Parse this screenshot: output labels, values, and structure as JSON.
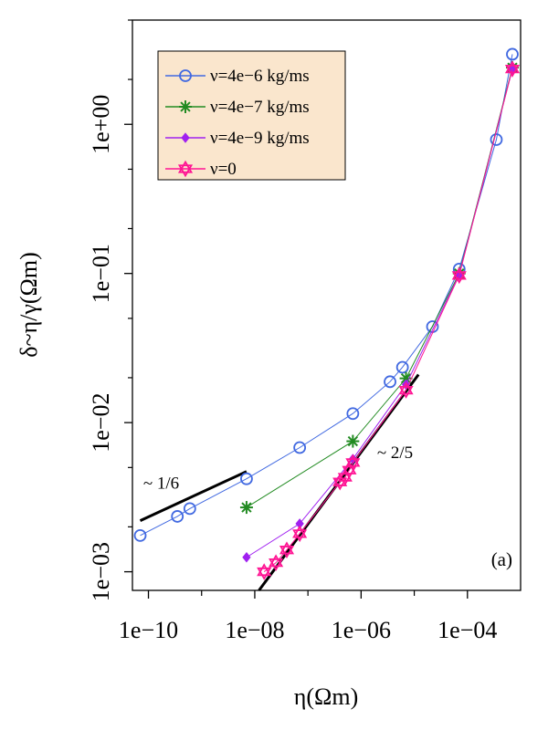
{
  "chart_data": {
    "type": "line",
    "xlabel": "η(Ωm)",
    "ylabel": "δ~η/γ(Ωm)",
    "xscale": "log",
    "yscale": "log",
    "xlim": [
      5e-11,
      0.001
    ],
    "ylim": [
      0.00075,
      5.0
    ],
    "x_tick_labels": [
      {
        "value": 1e-10,
        "label": "1e−10"
      },
      {
        "value": 1e-08,
        "label": "1e−08"
      },
      {
        "value": 1e-06,
        "label": "1e−06"
      },
      {
        "value": 0.0001,
        "label": "1e−04"
      }
    ],
    "y_tick_labels": [
      {
        "value": 0.001,
        "label": "1e−03"
      },
      {
        "value": 0.01,
        "label": "1e−02"
      },
      {
        "value": 0.1,
        "label": "1e−01"
      },
      {
        "value": 1.0,
        "label": "1e+00"
      }
    ],
    "legend": {
      "position": "top-left",
      "background": "#fae6cd"
    },
    "panel_label": "(a)",
    "series": [
      {
        "name": "ν=4e−6 kg/ms",
        "color": "#4169e1",
        "marker": "circle",
        "points": [
          [
            7e-11,
            0.00175
          ],
          [
            3.5e-10,
            0.00235
          ],
          [
            6e-10,
            0.00265
          ],
          [
            7e-09,
            0.0042
          ],
          [
            7e-08,
            0.0068
          ],
          [
            7e-07,
            0.0115
          ],
          [
            3.5e-06,
            0.0188
          ],
          [
            6e-06,
            0.0235
          ],
          [
            2.2e-05,
            0.044
          ],
          [
            7e-05,
            0.107
          ],
          [
            0.00035,
            0.79
          ],
          [
            0.0007,
            2.95
          ]
        ]
      },
      {
        "name": "ν=4e−7 kg/ms",
        "color": "#228b22",
        "marker": "asterisk",
        "points": [
          [
            7e-09,
            0.0027
          ],
          [
            7e-07,
            0.0075
          ],
          [
            7e-06,
            0.0198
          ],
          [
            7e-05,
            0.1
          ],
          [
            0.0007,
            2.4
          ]
        ]
      },
      {
        "name": "ν=4e−9 kg/ms",
        "color": "#a020f0",
        "marker": "diamond",
        "points": [
          [
            7e-09,
            0.00125
          ],
          [
            7e-08,
            0.0021
          ],
          [
            7e-07,
            0.0057
          ],
          [
            7e-06,
            0.018
          ],
          [
            7e-05,
            0.098
          ],
          [
            0.0007,
            2.35
          ]
        ]
      },
      {
        "name": "ν=0",
        "color": "#ff1493",
        "marker": "hexagram",
        "points": [
          [
            1.5e-08,
            0.001
          ],
          [
            2.5e-08,
            0.00115
          ],
          [
            4e-08,
            0.0014
          ],
          [
            7e-08,
            0.0018
          ],
          [
            4e-07,
            0.004
          ],
          [
            5e-07,
            0.0043
          ],
          [
            6e-07,
            0.0048
          ],
          [
            7e-07,
            0.0054
          ],
          [
            7e-06,
            0.0165
          ],
          [
            7e-05,
            0.097
          ],
          [
            0.0007,
            2.35
          ]
        ]
      }
    ],
    "reference_lines": [
      {
        "label": "~ 1/6",
        "from": [
          7e-11,
          0.0022
        ],
        "to": [
          7e-09,
          0.0047
        ],
        "label_at": [
          8e-11,
          0.0036
        ]
      },
      {
        "label": "~ 2/5",
        "from": [
          1.2e-08,
          0.00075
        ],
        "to": [
          1.2e-05,
          0.021
        ],
        "label_at": [
          2e-06,
          0.0058
        ]
      }
    ]
  }
}
